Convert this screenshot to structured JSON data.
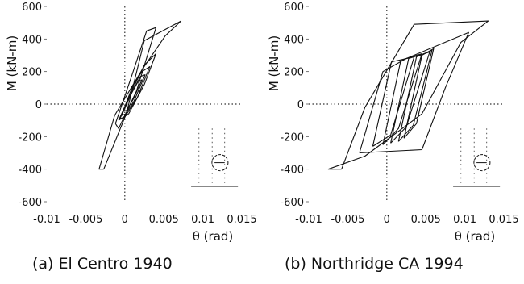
{
  "chart_data": [
    {
      "type": "line",
      "caption": "(a) El Centro 1940",
      "ylabel": "M (kN-m)",
      "xlabel": "θ (rad)",
      "xlim": [
        -0.01,
        0.015
      ],
      "ylim": [
        -600,
        600
      ],
      "xticks": [
        "-0.01",
        "-0.005",
        "0",
        "0.005",
        "0.01",
        "0.015"
      ],
      "yticks": [
        "600",
        "400",
        "200",
        "0",
        "-200",
        "-400",
        "-600"
      ],
      "series": [
        {
          "x": [
            -0.0027,
            0.0002,
            0.0025,
            0.0072,
            0.0072,
            0.0052,
            0.0022,
            -0.0013,
            -0.0033,
            -0.0027
          ],
          "y": [
            -400,
            -60,
            390,
            510,
            510,
            420,
            210,
            -70,
            -400,
            -400
          ]
        },
        {
          "x": [
            -0.0012,
            0.0008,
            0.0028,
            0.004,
            0.0015,
            -0.0008,
            -0.0012
          ],
          "y": [
            -120,
            160,
            450,
            470,
            80,
            -150,
            -120
          ]
        },
        {
          "x": [
            -0.0008,
            0.001,
            0.0025,
            0.004,
            0.0025,
            0.0005,
            -0.0008
          ],
          "y": [
            -100,
            90,
            240,
            310,
            120,
            -60,
            -100
          ]
        },
        {
          "x": [
            -0.0006,
            0.001,
            0.0022,
            0.0032,
            0.0016,
            0.0,
            -0.0006
          ],
          "y": [
            -90,
            110,
            200,
            230,
            40,
            -80,
            -90
          ]
        },
        {
          "x": [
            -0.0004,
            0.0009,
            0.002,
            0.0026,
            0.0012,
            0.0001,
            -0.0004
          ],
          "y": [
            -70,
            70,
            170,
            180,
            20,
            -60,
            -70
          ]
        },
        {
          "x": [
            -0.0002,
            0.0008,
            0.0016,
            0.0022,
            0.0011,
            0.0002,
            -0.0002
          ],
          "y": [
            -40,
            60,
            130,
            150,
            30,
            -40,
            -40
          ]
        }
      ]
    },
    {
      "type": "line",
      "caption": "(b) Northridge CA 1994",
      "ylabel": "M (kN-m)",
      "xlabel": "θ (rad)",
      "xlim": [
        -0.01,
        0.015
      ],
      "ylim": [
        -600,
        600
      ],
      "xticks": [
        "-0.01",
        "-0.005",
        "0",
        "0.005",
        "0.01",
        "0.015"
      ],
      "yticks": [
        "600",
        "400",
        "200",
        "0",
        "-200",
        "-400",
        "-600"
      ],
      "series": [
        {
          "x": [
            -0.0058,
            -0.0028,
            0.0035,
            0.013,
            0.013,
            0.0095,
            0.0045,
            -0.0028,
            -0.0075,
            -0.0058
          ],
          "y": [
            -400,
            -20,
            490,
            510,
            510,
            380,
            -60,
            -320,
            -400,
            -400
          ]
        },
        {
          "x": [
            -0.0035,
            -0.0005,
            0.0025,
            0.0105,
            0.0105,
            0.0075,
            0.0045,
            -0.0035
          ],
          "y": [
            -300,
            200,
            280,
            440,
            440,
            100,
            -280,
            -300
          ]
        },
        {
          "x": [
            -0.0018,
            0.0006,
            0.0035,
            0.0005,
            -0.0018
          ],
          "y": [
            -260,
            260,
            290,
            -190,
            -260
          ]
        },
        {
          "x": [
            -0.0005,
            0.0018,
            0.0045,
            0.0015,
            -0.0005
          ],
          "y": [
            -250,
            270,
            310,
            -150,
            -250
          ]
        },
        {
          "x": [
            0.0005,
            0.0028,
            0.0055,
            0.0025,
            0.0005
          ],
          "y": [
            -240,
            280,
            320,
            -140,
            -240
          ]
        },
        {
          "x": [
            0.0015,
            0.0038,
            0.0058,
            0.0034,
            0.0015
          ],
          "y": [
            -230,
            290,
            330,
            -130,
            -230
          ]
        },
        {
          "x": [
            0.0022,
            0.0045,
            0.006,
            0.0038,
            0.0022
          ],
          "y": [
            -210,
            300,
            340,
            -120,
            -210
          ]
        }
      ]
    }
  ]
}
